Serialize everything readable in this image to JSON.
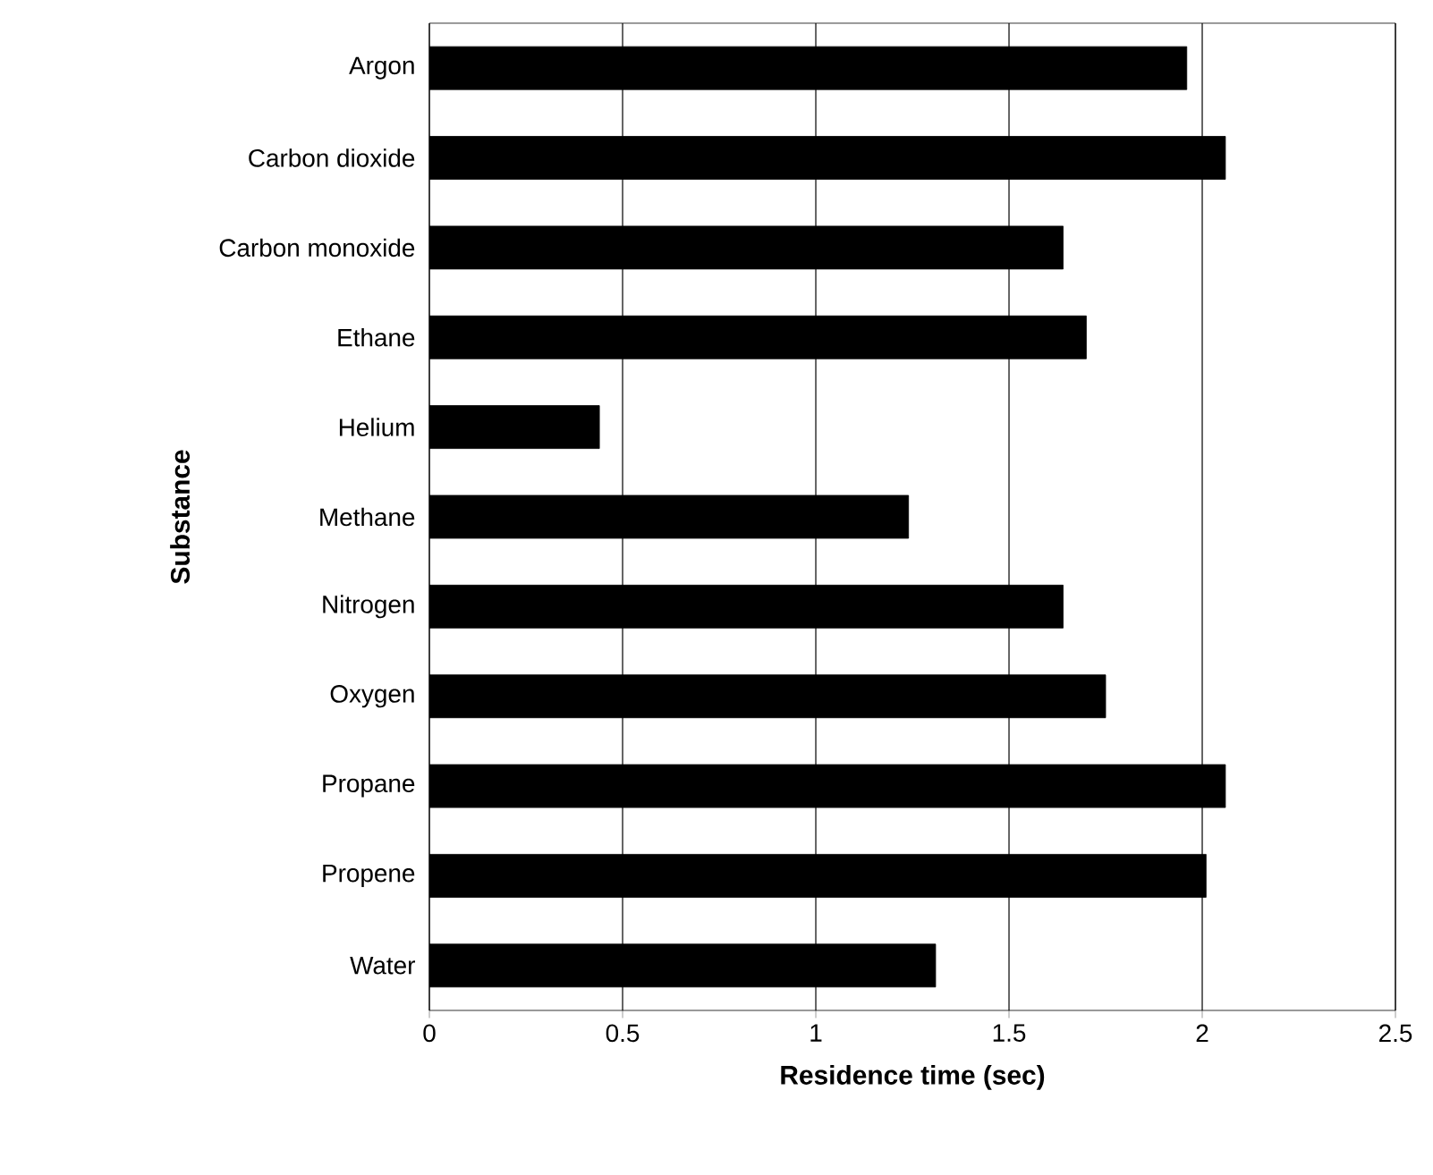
{
  "chart_data": {
    "type": "bar",
    "orientation": "horizontal",
    "xlabel": "Residence time (sec)",
    "ylabel": "Substance",
    "categories": [
      "Argon",
      "Carbon dioxide",
      "Carbon monoxide",
      "Ethane",
      "Helium",
      "Methane",
      "Nitrogen",
      "Oxygen",
      "Propane",
      "Propene",
      "Water"
    ],
    "values": [
      1.96,
      2.06,
      1.64,
      1.7,
      0.44,
      1.24,
      1.64,
      1.75,
      2.06,
      2.01,
      1.31
    ],
    "color": "#000000",
    "xlim": [
      0,
      2.5
    ],
    "xticks": [
      0,
      0.5,
      1,
      1.5,
      2,
      2.5
    ],
    "grid": "x"
  }
}
